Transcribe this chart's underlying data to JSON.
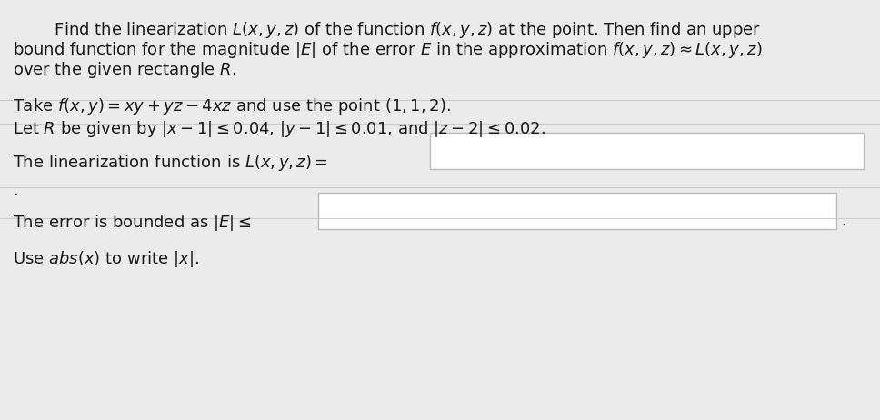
{
  "bg_color": "#ebebeb",
  "text_color": "#1a1a1a",
  "box_color": "#ffffff",
  "box_edge_color": "#bbbbbb",
  "line1": "        Find the linearization $L(x, y, z)$ of the function $f(x, y, z)$ at the point. Then find an upper",
  "line2": "bound function for the magnitude $|E|$ of the error $E$ in the approximation $f(x, y, z) \\approx L(x, y, z)$",
  "line3": "over the given rectangle $R$.",
  "line4": "Take $f(x, y) = xy + yz - 4xz$ and use the point $(1, 1, 2)$.",
  "line5": "Let $R$ be given by $|x - 1| \\leq 0.04$, $|y - 1| \\leq 0.01$, and $|z - 2| \\leq 0.02$.",
  "line6_prefix": "The linearization function is $L(x, y, z) =$",
  "line8_prefix": "The error is bounded as $|E| \\leq$",
  "line9": "Use $\\mathit{abs}(x)$ to write $|x|$.",
  "fontsize": 13.0,
  "figsize": [
    9.68,
    4.62
  ],
  "dpi": 100
}
